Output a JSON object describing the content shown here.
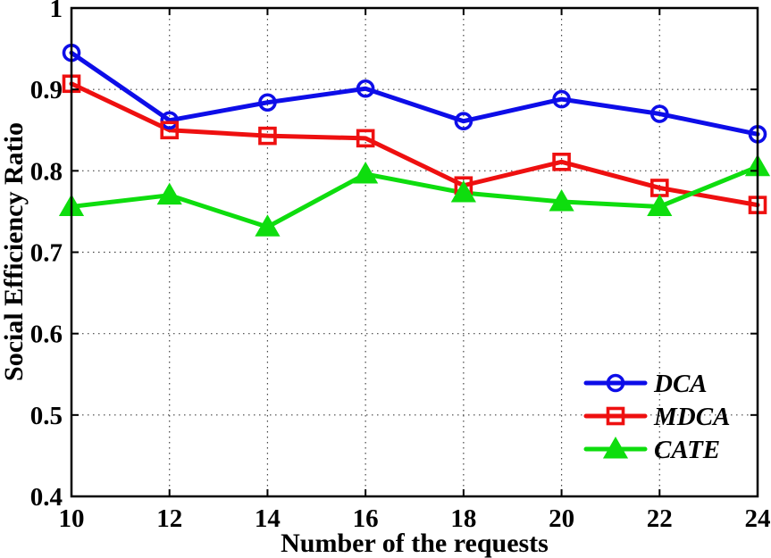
{
  "figure": {
    "background": "#ffffff",
    "frame_color": "#000000",
    "grid_color": "#444444"
  },
  "chart_data": {
    "type": "line",
    "title": "",
    "xlabel": "Number of the requests",
    "ylabel": "Social Efficiency Ratio",
    "x": [
      10,
      12,
      14,
      16,
      18,
      20,
      22,
      24
    ],
    "xlim": [
      10,
      24
    ],
    "ylim": [
      0.4,
      1.0
    ],
    "xticks": [
      10,
      12,
      14,
      16,
      18,
      20,
      22,
      24
    ],
    "xtick_labels": [
      "10",
      "12",
      "14",
      "16",
      "18",
      "20",
      "22",
      "24"
    ],
    "yticks": [
      0.4,
      0.5,
      0.6,
      0.7,
      0.8,
      0.9,
      1.0
    ],
    "ytick_labels": [
      "0.4",
      "0.5",
      "0.6",
      "0.7",
      "0.8",
      "0.9",
      "1"
    ],
    "grid": true,
    "legend_position": "lower right",
    "series": [
      {
        "name": "DCA",
        "color": "#0D0DE8",
        "marker": "circle",
        "marker_filled": false,
        "values": [
          0.945,
          0.862,
          0.884,
          0.901,
          0.861,
          0.888,
          0.87,
          0.845
        ]
      },
      {
        "name": "MDCA",
        "color": "#EE1010",
        "marker": "square",
        "marker_filled": false,
        "values": [
          0.907,
          0.85,
          0.843,
          0.84,
          0.782,
          0.811,
          0.779,
          0.758
        ]
      },
      {
        "name": "CATE",
        "color": "#0EDD0E",
        "marker": "triangle",
        "marker_filled": true,
        "values": [
          0.756,
          0.77,
          0.731,
          0.796,
          0.773,
          0.762,
          0.756,
          0.805
        ]
      }
    ]
  }
}
